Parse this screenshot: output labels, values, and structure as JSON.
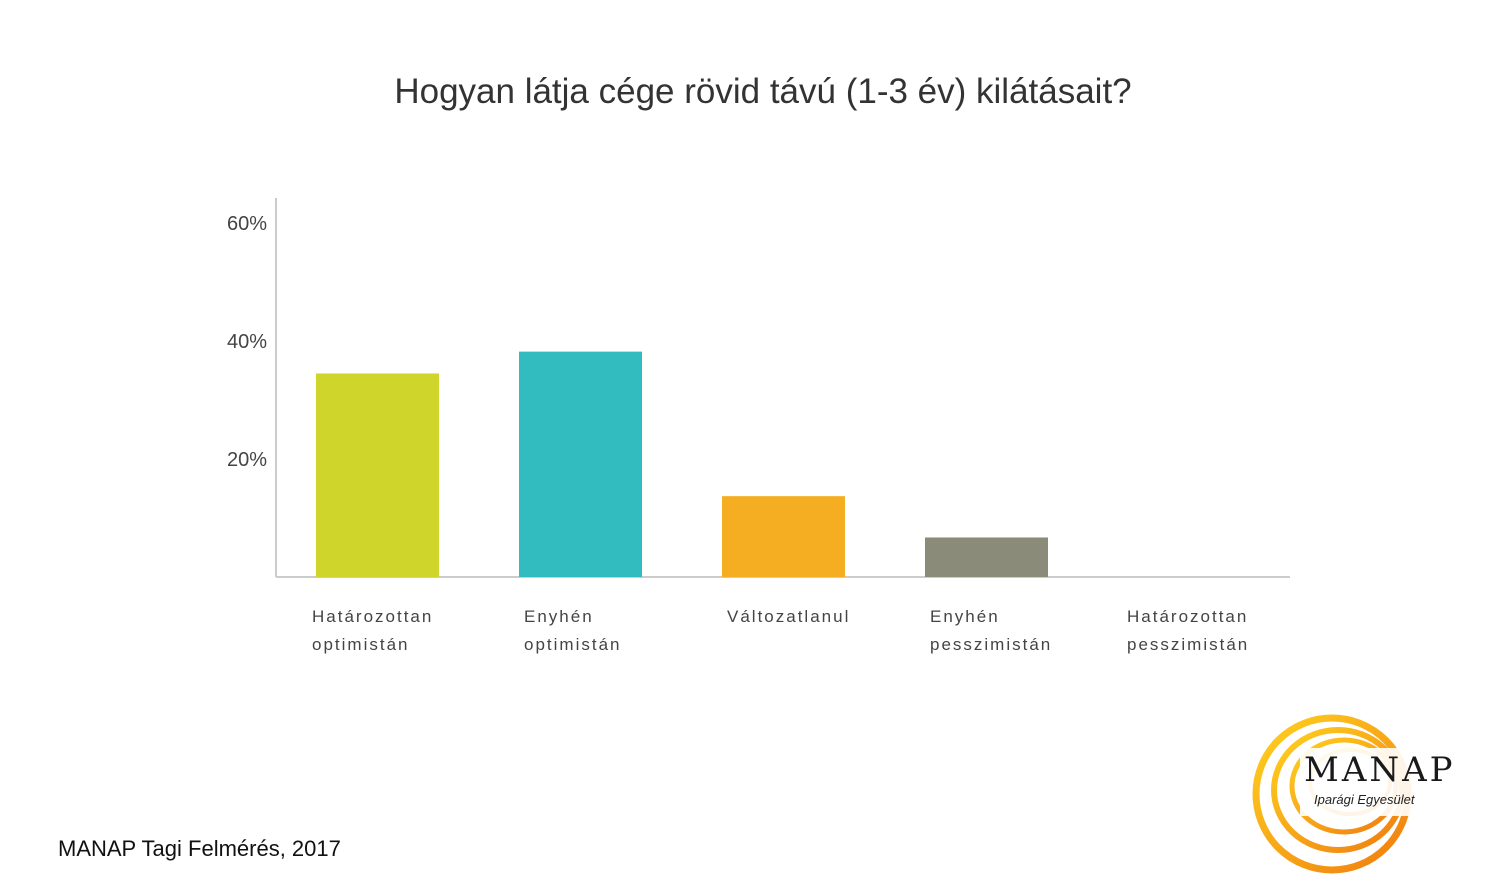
{
  "title": "Hogyan látja cége rövid távú (1-3 év) kilátásait?",
  "source_note": "MANAP Tagi Felmérés, 2017",
  "logo": {
    "word": "MANAP",
    "subtitle": "Iparági Egyesület"
  },
  "chart_data": {
    "type": "bar",
    "title": "Hogyan látja cége rövid távú (1-3 év) kilátásait?",
    "xlabel": "",
    "ylabel": "",
    "categories": [
      [
        "Határozottan",
        "optimistán"
      ],
      [
        "Enyhén",
        "optimistán"
      ],
      [
        "Változatlanul"
      ],
      [
        "Enyhén",
        "pesszimistán"
      ],
      [
        "Határozottan",
        "pesszimistán"
      ]
    ],
    "values": [
      34.5,
      38.2,
      13.7,
      6.7,
      0
    ],
    "colors": [
      "#cfd52a",
      "#33bcbf",
      "#f5ad22",
      "#8b8b7a",
      "#cccccc"
    ],
    "yticks": [
      {
        "value": 20,
        "label": "20%"
      },
      {
        "value": 40,
        "label": "40%"
      },
      {
        "value": 60,
        "label": "60%"
      }
    ],
    "ylim": [
      0,
      65
    ],
    "grid": false
  }
}
